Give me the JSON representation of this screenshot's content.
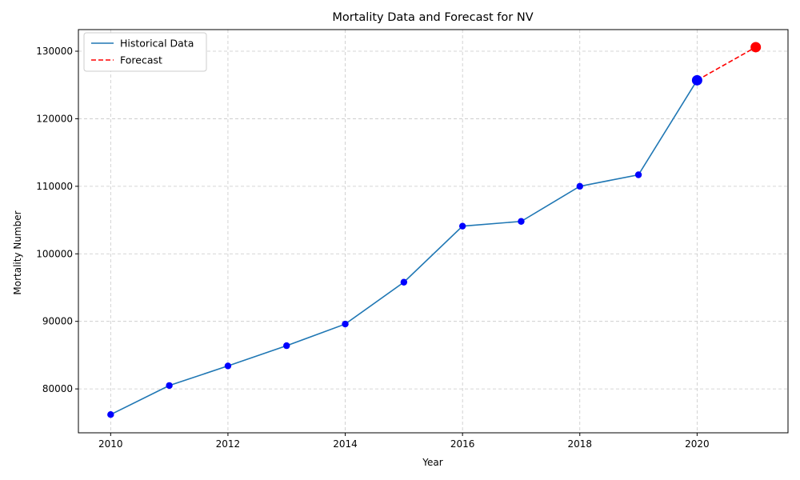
{
  "chart_data": {
    "type": "line",
    "title": "Mortality Data and Forecast for NV",
    "xlabel": "Year",
    "ylabel": "Mortality Number",
    "xlim": [
      2009.45,
      2021.55
    ],
    "ylim": [
      73500,
      133200
    ],
    "x_ticks": [
      2010,
      2012,
      2014,
      2016,
      2018,
      2020
    ],
    "y_ticks": [
      80000,
      90000,
      100000,
      110000,
      120000,
      130000
    ],
    "grid": true,
    "legend_position": "top-left",
    "series": [
      {
        "name": "Historical Data",
        "style": "solid",
        "color": "#1f77b4",
        "marker_color": "#0000ff",
        "x": [
          2010,
          2011,
          2012,
          2013,
          2014,
          2015,
          2016,
          2017,
          2018,
          2019,
          2020
        ],
        "y": [
          76200,
          80500,
          83400,
          86400,
          89600,
          95800,
          104100,
          104800,
          110000,
          111700,
          125700
        ]
      },
      {
        "name": "Forecast",
        "style": "dashed",
        "color": "#ff0000",
        "marker_color": "#ff0000",
        "x": [
          2020,
          2021
        ],
        "y": [
          125700,
          130600
        ]
      }
    ],
    "highlight_points": [
      {
        "x": 2020,
        "y": 125700,
        "color": "#0000ff"
      },
      {
        "x": 2021,
        "y": 130600,
        "color": "#ff0000"
      }
    ]
  }
}
